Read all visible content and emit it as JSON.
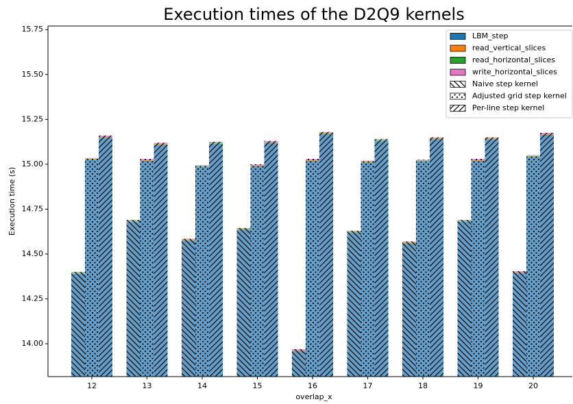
{
  "chart_data": {
    "type": "stacked_grouped_bar",
    "title": "Execution times of the D2Q9 kernels",
    "xlabel": "overlap_x",
    "ylabel": "Execution time (s)",
    "categories": [
      "12",
      "13",
      "14",
      "15",
      "16",
      "17",
      "18",
      "19",
      "20"
    ],
    "kernels": [
      {
        "name": "Naive step kernel",
        "hatch": "backslash"
      },
      {
        "name": "Adjusted grid step kernel",
        "hatch": "dots"
      },
      {
        "name": "Per-line step kernel",
        "hatch": "slash"
      }
    ],
    "series": [
      {
        "name": "LBM_step",
        "color": "#1f77b4",
        "values": [
          [
            14.39,
            15.025,
            15.15
          ],
          [
            14.68,
            15.02,
            15.11
          ],
          [
            14.575,
            14.985,
            15.115
          ],
          [
            14.635,
            14.99,
            15.12
          ],
          [
            13.96,
            15.02,
            15.17
          ],
          [
            14.62,
            15.01,
            15.13
          ],
          [
            14.56,
            15.015,
            15.14
          ],
          [
            14.68,
            15.02,
            15.14
          ],
          [
            14.395,
            15.04,
            15.165
          ]
        ]
      },
      {
        "name": "read_vertical_slices",
        "color": "#ff7f0e",
        "values": [
          [
            0.003,
            0.003,
            0.003
          ],
          [
            0.003,
            0.003,
            0.003
          ],
          [
            0.003,
            0.003,
            0.003
          ],
          [
            0.003,
            0.003,
            0.003
          ],
          [
            0.003,
            0.003,
            0.003
          ],
          [
            0.003,
            0.003,
            0.003
          ],
          [
            0.003,
            0.003,
            0.003
          ],
          [
            0.003,
            0.003,
            0.003
          ],
          [
            0.003,
            0.003,
            0.003
          ]
        ]
      },
      {
        "name": "read_horizontal_slices",
        "color": "#2ca02c",
        "values": [
          [
            0.003,
            0.003,
            0.003
          ],
          [
            0.003,
            0.003,
            0.003
          ],
          [
            0.003,
            0.003,
            0.003
          ],
          [
            0.003,
            0.003,
            0.003
          ],
          [
            0.003,
            0.003,
            0.003
          ],
          [
            0.003,
            0.003,
            0.003
          ],
          [
            0.003,
            0.003,
            0.003
          ],
          [
            0.003,
            0.003,
            0.003
          ],
          [
            0.003,
            0.003,
            0.003
          ]
        ]
      },
      {
        "name": "write_horizontal_slices",
        "color": "#e377c2",
        "values": [
          [
            0.004,
            0.004,
            0.004
          ],
          [
            0.004,
            0.004,
            0.004
          ],
          [
            0.004,
            0.004,
            0.004
          ],
          [
            0.004,
            0.004,
            0.004
          ],
          [
            0.004,
            0.004,
            0.004
          ],
          [
            0.004,
            0.004,
            0.004
          ],
          [
            0.004,
            0.004,
            0.004
          ],
          [
            0.004,
            0.004,
            0.004
          ],
          [
            0.004,
            0.004,
            0.004
          ]
        ]
      }
    ],
    "ylim": [
      13.817,
      15.77
    ],
    "yticks": [
      {
        "value": 14,
        "label": "14.00"
      },
      {
        "value": 14.25,
        "label": "14.25"
      },
      {
        "value": 14.5,
        "label": "14.50"
      },
      {
        "value": 14.75,
        "label": "14.75"
      },
      {
        "value": 15,
        "label": "15.00"
      },
      {
        "value": 15.25,
        "label": "15.25"
      },
      {
        "value": 15.5,
        "label": "15.50"
      },
      {
        "value": 15.75,
        "label": "15.75"
      }
    ],
    "legend": "upper right"
  }
}
